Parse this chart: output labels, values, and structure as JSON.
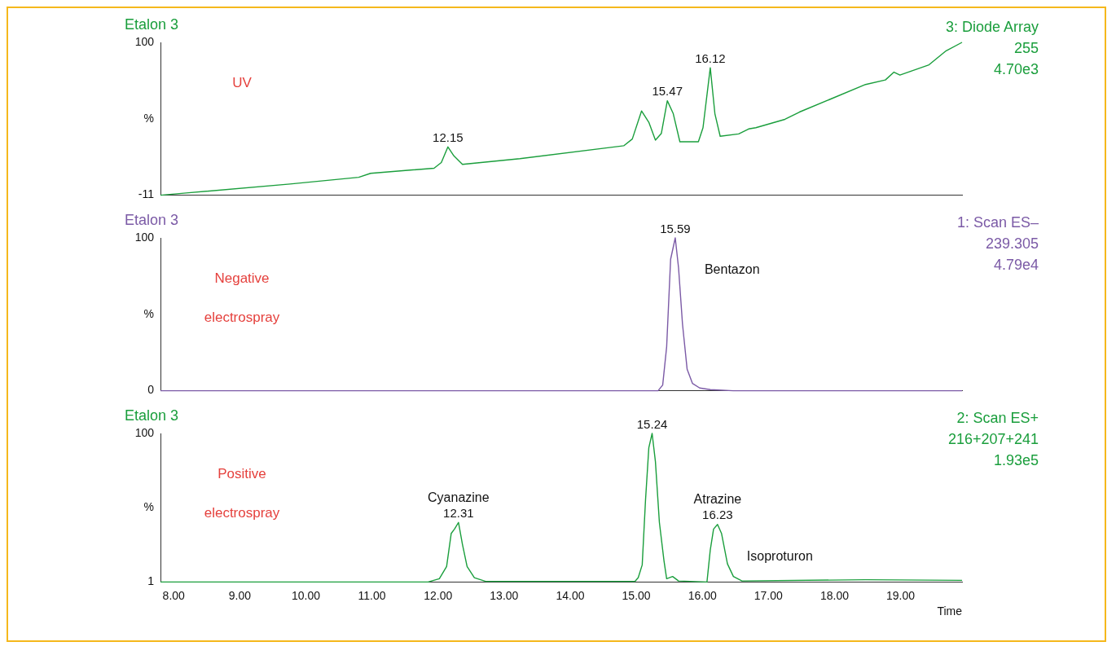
{
  "chart_data": [
    {
      "type": "line",
      "title": "Etalon 3",
      "subtitle": "3: Diode Array\n255\n4.70e3",
      "annotations": [
        "UV",
        {
          "text": "12.15",
          "x": 12.15,
          "y": 24.1
        },
        {
          "text": "15.47",
          "x": 15.47,
          "y": 57.6
        },
        {
          "text": "16.12",
          "x": 16.12,
          "y": 81.6
        }
      ],
      "series": [
        {
          "color": "#1a9e3c",
          "x": [
            7.8,
            8.19,
            9.76,
            10.8,
            10.98,
            11.94,
            12.05,
            12.15,
            12.24,
            12.37,
            13.24,
            14.81,
            14.94,
            15.08,
            15.19,
            15.29,
            15.38,
            15.47,
            15.56,
            15.66,
            15.94,
            16.01,
            16.12,
            16.19,
            16.27,
            16.55,
            16.7,
            16.81,
            17.25,
            17.47,
            18.47,
            18.77,
            18.9,
            18.99,
            19.43,
            19.69,
            19.93
          ],
          "values": [
            -11,
            -9.4,
            -2.9,
            2,
            4.9,
            8.6,
            12.7,
            24.1,
            17.6,
            11.4,
            15.5,
            24.9,
            29.8,
            50.2,
            42,
            29,
            33.9,
            57.6,
            48.2,
            27.8,
            27.8,
            38,
            81.6,
            48.2,
            31.8,
            33.5,
            37.1,
            38,
            44.1,
            49.4,
            69.4,
            72.7,
            78.4,
            76.3,
            83.7,
            93.9,
            100
          ]
        }
      ],
      "xlim": [
        7.8,
        19.93
      ],
      "xticks": [
        {
          "value": 8,
          "label": null
        },
        {
          "value": 9,
          "label": null
        },
        {
          "value": 10,
          "label": null
        },
        {
          "value": 11,
          "label": null
        },
        {
          "value": 12,
          "label": null
        },
        {
          "value": 13,
          "label": null
        },
        {
          "value": 14,
          "label": null
        },
        {
          "value": 15,
          "label": null
        },
        {
          "value": 16,
          "label": null
        },
        {
          "value": 17,
          "label": null
        },
        {
          "value": 18,
          "label": null
        },
        {
          "value": 19,
          "label": null
        }
      ],
      "ylim": [
        -11,
        100
      ],
      "yticks": [
        -11,
        {
          "value": 44.5,
          "label": "%"
        },
        100
      ],
      "tick_labels": "y"
    },
    {
      "type": "line",
      "title": "Etalon 3",
      "subtitle": "1: Scan ES–\n239.305\n4.79e4",
      "annotations": [
        "Negative",
        "electrospray",
        {
          "text": "15.59",
          "x": 15.59,
          "y": 100
        },
        "Bentazon"
      ],
      "series": [
        {
          "color": "#7b5aa6",
          "x": [
            7.8,
            15.33,
            15.4,
            15.46,
            15.52,
            15.59,
            15.64,
            15.7,
            15.77,
            15.85,
            15.96,
            16.12,
            16.47,
            19.93
          ],
          "values": [
            0,
            0,
            3.7,
            28.8,
            86,
            100,
            80.4,
            43.5,
            14,
            4.8,
            1.8,
            0.7,
            0,
            0
          ]
        }
      ],
      "xlim": [
        7.8,
        19.93
      ],
      "xticks": [
        {
          "value": 8,
          "label": null
        },
        {
          "value": 9,
          "label": null
        },
        {
          "value": 10,
          "label": null
        },
        {
          "value": 11,
          "label": null
        },
        {
          "value": 12,
          "label": null
        },
        {
          "value": 13,
          "label": null
        },
        {
          "value": 14,
          "label": null
        },
        {
          "value": 15,
          "label": null
        },
        {
          "value": 16,
          "label": null
        },
        {
          "value": 17,
          "label": null
        },
        {
          "value": 18,
          "label": null
        },
        {
          "value": 19,
          "label": null
        }
      ],
      "ylim": [
        0,
        100
      ],
      "yticks": [
        0,
        {
          "value": 50,
          "label": "%"
        },
        100
      ],
      "tick_labels": "y"
    },
    {
      "type": "line",
      "title": "Etalon 3",
      "subtitle": "2: Scan ES+\n216+207+241\n1.93e5",
      "xlabel": "Time",
      "annotations": [
        "Positive",
        "electrospray",
        "Cyanazine",
        {
          "text": "12.31",
          "x": 12.31,
          "y": 40.7
        },
        {
          "text": "15.24",
          "x": 15.24,
          "y": 100
        },
        "Atrazine",
        {
          "text": "16.23",
          "x": 16.23,
          "y": 39.3
        },
        "Isoproturon"
      ],
      "series": [
        {
          "color": "#1a9e3c",
          "x": [
            7.8,
            11.85,
            12.02,
            12.13,
            12.2,
            12.25,
            12.31,
            12.37,
            12.44,
            12.55,
            12.72,
            14.98,
            15.03,
            15.09,
            15.14,
            15.19,
            15.24,
            15.29,
            15.35,
            15.42,
            15.46,
            15.55,
            15.64,
            16.07,
            16.12,
            16.17,
            16.23,
            16.29,
            16.38,
            16.47,
            16.6,
            18.47,
            19.93
          ],
          "values": [
            1,
            1,
            3.2,
            11.3,
            33.4,
            36.3,
            40.7,
            26,
            11.3,
            3.9,
            1.4,
            1.4,
            3.9,
            12.4,
            55.5,
            90.4,
            100,
            81.2,
            40.7,
            15,
            3.2,
            4.7,
            1.7,
            1,
            22.3,
            36.3,
            39.3,
            33.4,
            13.1,
            4.7,
            1.7,
            2.5,
            2.1
          ]
        }
      ],
      "xlim": [
        7.8,
        19.93
      ],
      "xticks": [
        {
          "value": 8,
          "label": "8.00"
        },
        {
          "value": 9,
          "label": "9.00"
        },
        {
          "value": 10,
          "label": "10.00"
        },
        {
          "value": 11,
          "label": "11.00"
        },
        {
          "value": 12,
          "label": "12.00"
        },
        {
          "value": 13,
          "label": "13.00"
        },
        {
          "value": 14,
          "label": "14.00"
        },
        {
          "value": 15,
          "label": "15.00"
        },
        {
          "value": 16,
          "label": "16.00"
        },
        {
          "value": 17,
          "label": "17.00"
        },
        {
          "value": 18,
          "label": "18.00"
        },
        {
          "value": 19,
          "label": "19.00"
        }
      ],
      "ylim": [
        1,
        100
      ],
      "yticks": [
        1,
        {
          "value": 50.5,
          "label": "%"
        },
        100
      ]
    }
  ]
}
